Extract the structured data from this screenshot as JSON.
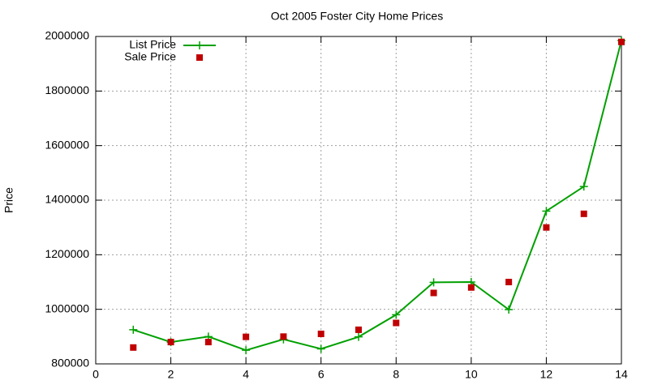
{
  "chart_data": {
    "type": "line",
    "title": "Oct 2005 Foster City Home Prices",
    "y_label": "Price",
    "x": [
      1,
      2,
      3,
      4,
      5,
      6,
      7,
      8,
      9,
      10,
      11,
      12,
      13,
      14
    ],
    "series": [
      {
        "name": "List Price",
        "color": "#00a000",
        "style": "linespoints",
        "values": [
          925000,
          880000,
          900000,
          850000,
          890000,
          855000,
          899000,
          980000,
          1099000,
          1100000,
          999000,
          1360000,
          1450000,
          1985000
        ]
      },
      {
        "name": "Sale Price",
        "color": "#c00000",
        "style": "points",
        "values": [
          860000,
          880000,
          880000,
          899000,
          900000,
          910000,
          925000,
          950000,
          1060000,
          1080000,
          1100000,
          1300000,
          1350000,
          1980000
        ]
      }
    ],
    "xlim": [
      0,
      14
    ],
    "xticks": [
      0,
      2,
      4,
      6,
      8,
      10,
      12,
      14
    ],
    "ylim": [
      800000,
      2000000
    ],
    "yticks": [
      800000,
      1000000,
      1200000,
      1400000,
      1600000,
      1800000,
      2000000
    ],
    "grid": true,
    "legend": "top-left"
  }
}
